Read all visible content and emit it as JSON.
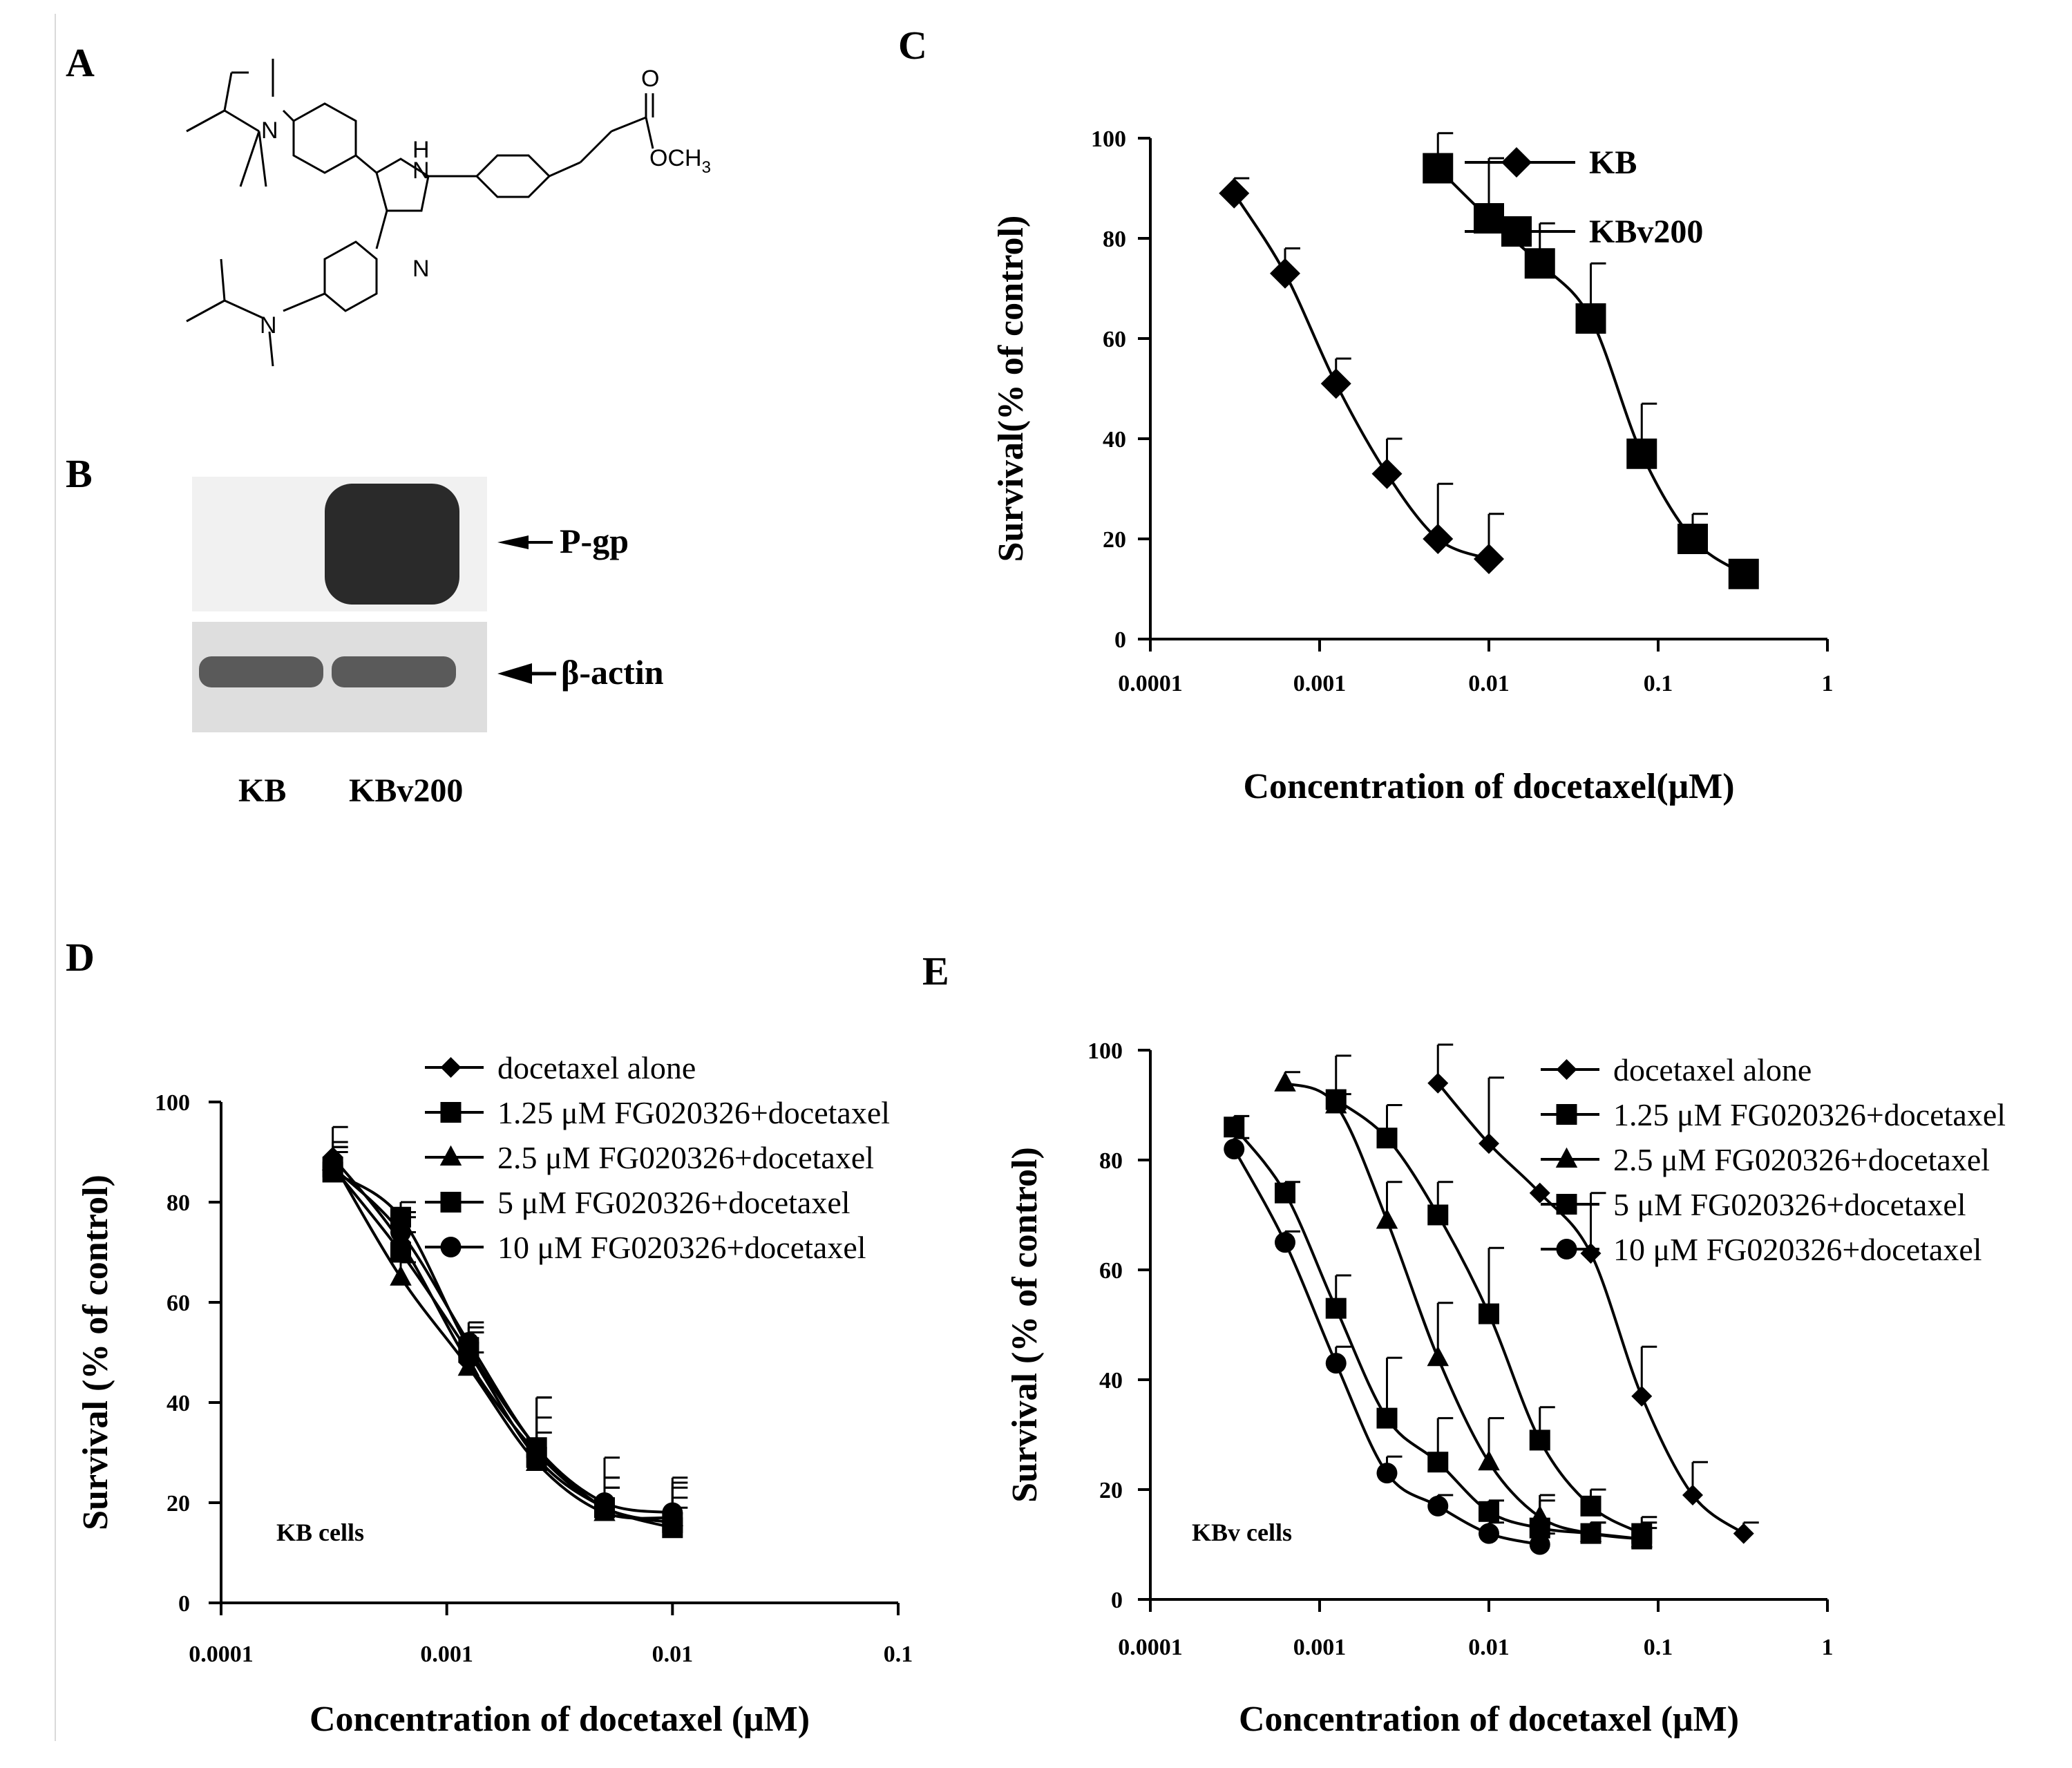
{
  "panels": {
    "a": "A",
    "b": "B",
    "c": "C",
    "d": "D",
    "e": "E"
  },
  "structure": {
    "n_top": "N",
    "n_bottom": "N",
    "nh": "H",
    "nh_n": "N",
    "n_ring": "N",
    "o_carbonyl": "O",
    "och3": "OCH",
    "sub3": "3"
  },
  "blot": {
    "pgp_label": "P-gp",
    "actin_label": "β-actin",
    "lane1": "KB",
    "lane2": "KBv200"
  },
  "chart_data": [
    {
      "id": "C",
      "type": "line",
      "xscale": "log",
      "xlim": [
        0.0001,
        1
      ],
      "ylim": [
        0,
        100
      ],
      "xticks": [
        "0.0001",
        "0.001",
        "0.01",
        "0.1",
        "1"
      ],
      "yticks": [
        "0",
        "20",
        "40",
        "60",
        "80",
        "100"
      ],
      "xlabel": "Concentration of docetaxel(μM)",
      "ylabel": "Survival(% of control)",
      "legend_position": "top-right",
      "series": [
        {
          "name": "KB",
          "marker": "diamond",
          "x": [
            0.0003125,
            0.000625,
            0.00125,
            0.0025,
            0.005,
            0.01
          ],
          "y": [
            89,
            73,
            51,
            33,
            20,
            16
          ],
          "err": [
            3,
            5,
            5,
            7,
            11,
            9
          ]
        },
        {
          "name": "KBv200",
          "marker": "square",
          "x": [
            0.005,
            0.01,
            0.02,
            0.04,
            0.08,
            0.16,
            0.32
          ],
          "y": [
            94,
            84,
            75,
            64,
            37,
            20,
            13
          ],
          "err": [
            7,
            12,
            8,
            11,
            10,
            5,
            0
          ]
        }
      ]
    },
    {
      "id": "D",
      "type": "line",
      "xscale": "log",
      "xlim": [
        0.0001,
        0.1
      ],
      "ylim": [
        0,
        100
      ],
      "xticks": [
        "0.0001",
        "0.001",
        "0.01",
        "0.1"
      ],
      "yticks": [
        "0",
        "20",
        "40",
        "60",
        "80",
        "100"
      ],
      "xlabel": "Concentration of docetaxel (μM)",
      "ylabel": "Survival (% of control)",
      "annotation": "KB  cells",
      "legend_position": "top-right",
      "series": [
        {
          "name": "docetaxel alone",
          "marker": "diamond",
          "x": [
            0.0003125,
            0.000625,
            0.00125,
            0.0025,
            0.005,
            0.01
          ],
          "y": [
            89,
            72,
            48,
            30,
            19,
            16
          ],
          "err": [
            6,
            5,
            6,
            11,
            10,
            8
          ]
        },
        {
          "name": "1.25 μM FG020326+docetaxel",
          "marker": "square",
          "x": [
            0.0003125,
            0.000625,
            0.00125,
            0.0025,
            0.005,
            0.01
          ],
          "y": [
            86,
            77,
            51,
            31,
            19,
            16
          ],
          "err": [
            4,
            3,
            4,
            10,
            6,
            9
          ]
        },
        {
          "name": "2.5 μM FG020326+docetaxel",
          "marker": "triangle",
          "x": [
            0.0003125,
            0.000625,
            0.00125,
            0.0025,
            0.005,
            0.01
          ],
          "y": [
            88,
            65,
            47,
            28,
            18,
            17
          ],
          "err": [
            3,
            3,
            3,
            6,
            5,
            4
          ]
        },
        {
          "name": "5 μM FG020326+docetaxel",
          "marker": "square",
          "x": [
            0.0003125,
            0.000625,
            0.00125,
            0.0025,
            0.005,
            0.01
          ],
          "y": [
            87,
            70,
            50,
            29,
            19,
            15
          ],
          "err": [
            4,
            4,
            4,
            5,
            4,
            4
          ]
        },
        {
          "name": "10 μM FG020326+docetaxel",
          "marker": "circle",
          "x": [
            0.0003125,
            0.000625,
            0.00125,
            0.0025,
            0.005,
            0.01
          ],
          "y": [
            87,
            74,
            52,
            31,
            20,
            18
          ],
          "err": [
            5,
            4,
            4,
            6,
            5,
            5
          ]
        }
      ]
    },
    {
      "id": "E",
      "type": "line",
      "xscale": "log",
      "xlim": [
        0.0001,
        1
      ],
      "ylim": [
        0,
        100
      ],
      "xticks": [
        "0.0001",
        "0.001",
        "0.01",
        "0.1",
        "1"
      ],
      "yticks": [
        "0",
        "20",
        "40",
        "60",
        "80",
        "100"
      ],
      "xlabel": "Concentration of docetaxel (μM)",
      "ylabel": "Survival (% of control)",
      "annotation": "KBv cells",
      "legend_position": "top-right",
      "series": [
        {
          "name": "docetaxel alone",
          "marker": "diamond",
          "x": [
            0.005,
            0.01,
            0.02,
            0.04,
            0.08,
            0.16,
            0.32
          ],
          "y": [
            94,
            83,
            74,
            63,
            37,
            19,
            12
          ],
          "err": [
            7,
            12,
            0,
            11,
            9,
            6,
            2
          ]
        },
        {
          "name": "1.25 μM FG020326+docetaxel",
          "marker": "square",
          "x": [
            0.00125,
            0.0025,
            0.005,
            0.01,
            0.02,
            0.04,
            0.08
          ],
          "y": [
            91,
            84,
            70,
            52,
            29,
            17,
            12
          ],
          "err": [
            8,
            6,
            6,
            12,
            6,
            3,
            3
          ]
        },
        {
          "name": "2.5 μM FG020326+docetaxel",
          "marker": "triangle",
          "x": [
            0.000625,
            0.00125,
            0.0025,
            0.005,
            0.01,
            0.02,
            0.04,
            0.08
          ],
          "y": [
            94,
            90,
            69,
            44,
            25,
            15,
            12,
            11
          ],
          "err": [
            2,
            2,
            7,
            10,
            8,
            4,
            2,
            3
          ]
        },
        {
          "name": "5 μM FG020326+docetaxel",
          "marker": "square",
          "x": [
            0.0003125,
            0.000625,
            0.00125,
            0.0025,
            0.005,
            0.01,
            0.02,
            0.04,
            0.08
          ],
          "y": [
            86,
            74,
            53,
            33,
            25,
            16,
            13,
            12,
            11
          ],
          "err": [
            2,
            2,
            6,
            11,
            8,
            2,
            5,
            2,
            2
          ]
        },
        {
          "name": "10 μM FG020326+docetaxel",
          "marker": "circle",
          "x": [
            0.0003125,
            0.000625,
            0.00125,
            0.0025,
            0.005,
            0.01,
            0.02
          ],
          "y": [
            82,
            65,
            43,
            23,
            17,
            12,
            10
          ],
          "err": [
            2,
            2,
            3,
            3,
            2,
            2,
            2
          ]
        }
      ]
    }
  ]
}
